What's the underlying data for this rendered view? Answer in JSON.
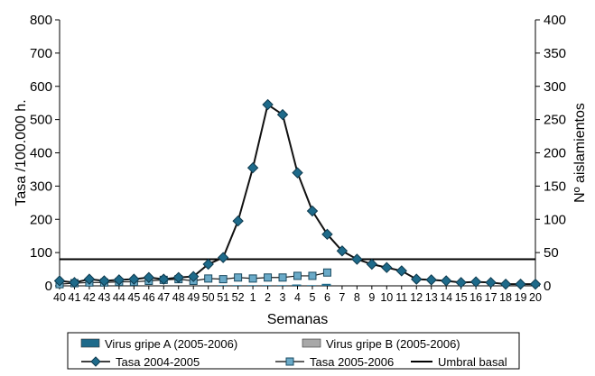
{
  "chart_data": {
    "type": "line",
    "xlabel": "Semanas",
    "ylabel": "Tasa /100.000 h.",
    "y2label": "Nº aislamientos",
    "ylim": [
      0,
      800
    ],
    "y2lim": [
      0,
      400
    ],
    "yticks": [
      0,
      100,
      200,
      300,
      400,
      500,
      600,
      700,
      800
    ],
    "y2ticks": [
      0,
      50,
      100,
      150,
      200,
      250,
      300,
      350,
      400
    ],
    "categories": [
      "40",
      "41",
      "42",
      "43",
      "44",
      "45",
      "46",
      "47",
      "48",
      "49",
      "50",
      "51",
      "52",
      "1",
      "2",
      "3",
      "4",
      "5",
      "6",
      "7",
      "8",
      "9",
      "10",
      "11",
      "12",
      "13",
      "14",
      "15",
      "16",
      "17",
      "18",
      "19",
      "20"
    ],
    "legend": {
      "placement": "bottom",
      "items": [
        {
          "label": "Virus gripe A (2005-2006)",
          "kind": "bar",
          "color": "#1e6a8a"
        },
        {
          "label": "Virus gripe B (2005-2006)",
          "kind": "bar",
          "color": "#a8a8a8"
        },
        {
          "label": "Tasa 2004-2005",
          "kind": "line-diamond",
          "color": "#1e6a8a"
        },
        {
          "label": "Tasa 2005-2006",
          "kind": "line-square",
          "color": "#6aaac8"
        },
        {
          "label": "Umbral basal",
          "kind": "line",
          "color": "#000000"
        }
      ]
    },
    "series": [
      {
        "name": "Tasa 2004-2005",
        "axis": "left",
        "values": [
          15,
          10,
          20,
          15,
          18,
          20,
          25,
          20,
          25,
          28,
          65,
          85,
          195,
          355,
          545,
          515,
          340,
          225,
          155,
          105,
          80,
          65,
          55,
          45,
          20,
          18,
          15,
          10,
          12,
          10,
          5,
          5,
          5
        ]
      },
      {
        "name": "Tasa 2005-2006",
        "axis": "left",
        "values": [
          5,
          8,
          10,
          10,
          12,
          12,
          15,
          18,
          20,
          15,
          22,
          20,
          25,
          22,
          25,
          25,
          30,
          30,
          40,
          null,
          null,
          null,
          null,
          null,
          null,
          null,
          null,
          null,
          null,
          null,
          null,
          null,
          null
        ]
      },
      {
        "name": "Umbral basal",
        "axis": "left",
        "constant": 80
      },
      {
        "name": "Virus gripe A (2005-2006)",
        "axis": "right",
        "values": [
          0,
          0,
          0,
          0,
          0,
          0,
          0,
          0,
          0,
          0,
          0,
          1,
          1,
          1,
          1,
          1,
          2,
          1,
          3,
          0,
          0,
          0,
          0,
          0,
          0,
          0,
          0,
          0,
          0,
          0,
          0,
          0,
          0
        ]
      },
      {
        "name": "Virus gripe B (2005-2006)",
        "axis": "right",
        "values": [
          0,
          0,
          0,
          0,
          0,
          0,
          0,
          0,
          0,
          0,
          0,
          0,
          0,
          0,
          0,
          0,
          0,
          0,
          0,
          0,
          0,
          0,
          0,
          0,
          0,
          0,
          0,
          0,
          0,
          0,
          0,
          0,
          0
        ]
      }
    ],
    "colors": {
      "tasa_2004": "#1e6a8a",
      "tasa_2005": "#6aaac8",
      "gripe_a": "#1e6a8a",
      "gripe_b": "#a8a8a8",
      "umbral": "#000000"
    }
  }
}
